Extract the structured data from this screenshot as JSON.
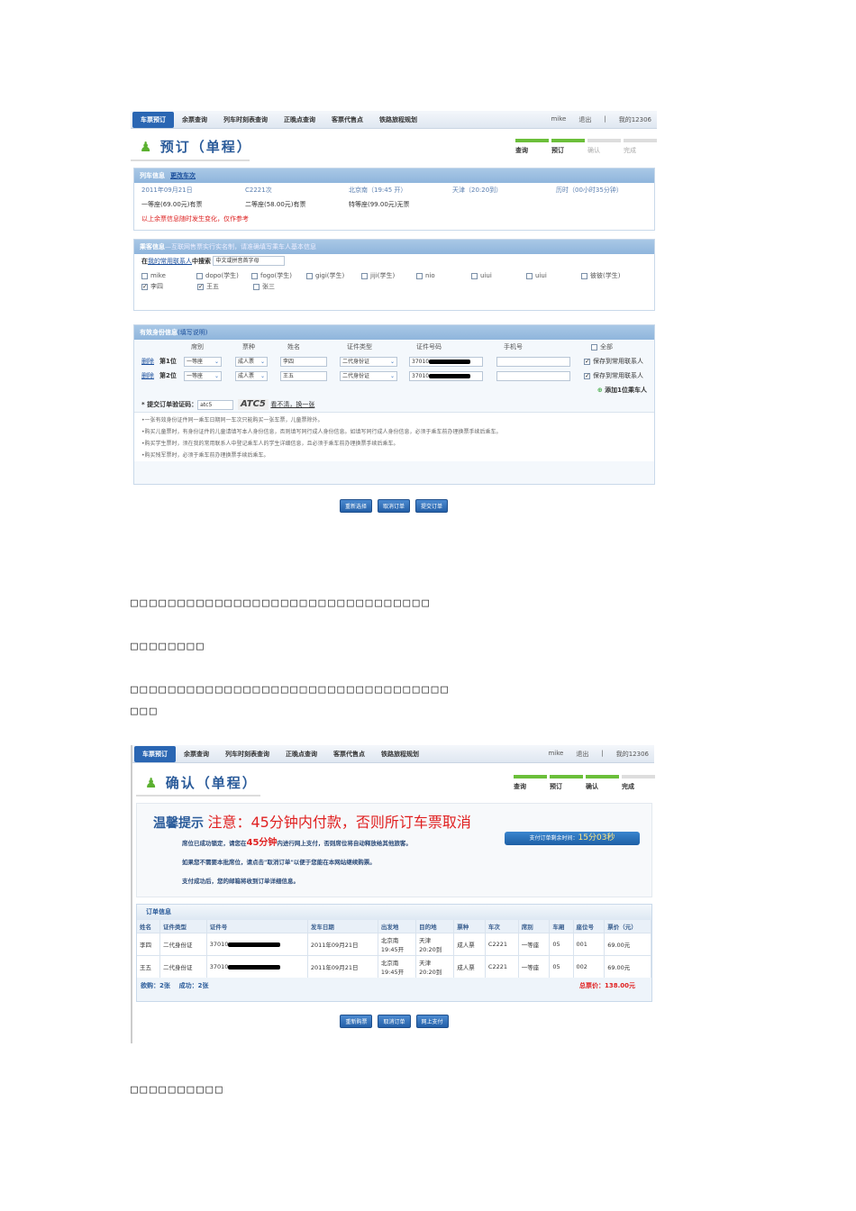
{
  "nav": {
    "items": [
      "车票预订",
      "余票查询",
      "列车时刻表查询",
      "正晚点查询",
      "客票代售点",
      "铁路旅程规划"
    ],
    "user": "mike",
    "logout": "退出",
    "sep": "|",
    "my": "我的12306"
  },
  "steps": [
    "查询",
    "预订",
    "确认",
    "完成"
  ],
  "booking": {
    "title": "预订（单程）",
    "train_section": {
      "title": "列车信息",
      "change_link": "更改车次",
      "date": "2011年09月21日",
      "train": "C2221次",
      "from": "北京南（19:45 开）",
      "to": "天津（20:20到）",
      "duration": "历时（00小时35分钟）",
      "seats": [
        "一等座(69.00元)有票",
        "二等座(58.00元)有票",
        "特等座(99.00元)无票"
      ],
      "note": "以上余票信息随时发生变化，仅作参考"
    },
    "passenger_section": {
      "title": "乘客信息",
      "subtitle": "—互联网售票实行实名制，请准确填写乘车人基本信息",
      "search_prefix": "在",
      "search_link": "我的常用联系人",
      "search_suffix": "中搜索",
      "search_placeholder": "中文或拼音首字母",
      "contacts": [
        {
          "name": "mike",
          "checked": false
        },
        {
          "name": "dopo(学生)",
          "checked": false
        },
        {
          "name": "fogo(学生)",
          "checked": false
        },
        {
          "name": "gigi(学生)",
          "checked": false
        },
        {
          "name": "jiji(学生)",
          "checked": false
        },
        {
          "name": "nio",
          "checked": false
        },
        {
          "name": "uiui",
          "checked": false
        },
        {
          "name": "uiui",
          "checked": false
        },
        {
          "name": "彼彼(学生)",
          "checked": false
        },
        {
          "name": "李四",
          "checked": true
        },
        {
          "name": "王五",
          "checked": true
        },
        {
          "name": "张三",
          "checked": false
        }
      ]
    },
    "id_section": {
      "title": "有效身份信息",
      "help": "(填写说明)",
      "headers": [
        "席别",
        "票种",
        "姓名",
        "证件类型",
        "证件号码",
        "手机号",
        "全部"
      ],
      "rows": [
        {
          "del": "删除",
          "pos": "第1位",
          "seat": "一等座",
          "type": "成人票",
          "name": "李四",
          "idtype": "二代身份证",
          "id": "37010",
          "save": "保存到常用联系人"
        },
        {
          "del": "删除",
          "pos": "第2位",
          "seat": "一等座",
          "type": "成人票",
          "name": "王五",
          "idtype": "二代身份证",
          "id": "37010",
          "save": "保存到常用联系人"
        }
      ],
      "add": "添加1位乘车人",
      "captcha_label": "* 提交订单验证码：",
      "captcha_value": "atc5",
      "captcha_img": "ATC5",
      "captcha_refresh": "看不清，换一张",
      "notes": [
        "一张有效身份证件同一乘车日期同一车次只能购买一张车票，儿童票除外。",
        "购买儿童票时，有身份证件的儿童请填写本人身份信息，否则填写同行成人身份信息。如填写同行成人身份信息，必须于乘车前办理换票手续后乘车。",
        "购买学生票时，须在我的常用联系人中登记乘车人的学生详细信息，且必须于乘车前办理换票手续后乘车。",
        "购买残军票时，必须于乘车前办理换票手续后乘车。"
      ]
    },
    "buttons": [
      "重新选择",
      "取消订单",
      "提交订单"
    ]
  },
  "paragraphs": [
    "□□□□□□□□□□□□□□□□□□□□□□□□□□□□□□□□",
    "□□□□□□□□",
    "□□□□□□□□□□□□□□□□□□□□□□□□□□□□□□□□□□",
    "□□□",
    "□□□□□□□□□□"
  ],
  "confirm": {
    "title": "确认（单程）",
    "tip_label": "温馨提示",
    "warning": "注意：45分钟内付款，否则所订车票取消",
    "lines": [
      {
        "pre": "席位已成功锁定，请您在",
        "em": "45分钟",
        "post": "内进行网上支付，否则席位将自动释放给其他旅客。"
      },
      {
        "pre": "如果您不需要本批席位，请点击\"取消订单\"以便于您能在本网站继续购票。"
      },
      {
        "pre": "支付成功后，您的邮箱将收到订单详细信息。"
      }
    ],
    "timer_label": "支付订单剩余时间：",
    "timer_value": "15分03秒",
    "order_title": "订单信息",
    "headers": [
      "姓名",
      "证件类型",
      "证件号",
      "发车日期",
      "出发地",
      "目的地",
      "票种",
      "车次",
      "席别",
      "车厢",
      "座位号",
      "票价（元）"
    ],
    "rows": [
      [
        "李四",
        "二代身份证",
        "37010",
        "2011年09月21日",
        "北京南 19:45开",
        "天津 20:20到",
        "成人票",
        "C2221",
        "一等座",
        "05",
        "001",
        "69.00元"
      ],
      [
        "王五",
        "二代身份证",
        "37010",
        "2011年09月21日",
        "北京南 19:45开",
        "天津 20:20到",
        "成人票",
        "C2221",
        "一等座",
        "05",
        "002",
        "69.00元"
      ]
    ],
    "want": "欲购：2张",
    "success": "成功：2张",
    "total": "总票价：138.00元",
    "buttons": [
      "重新购票",
      "取消订单",
      "网上支付"
    ]
  }
}
